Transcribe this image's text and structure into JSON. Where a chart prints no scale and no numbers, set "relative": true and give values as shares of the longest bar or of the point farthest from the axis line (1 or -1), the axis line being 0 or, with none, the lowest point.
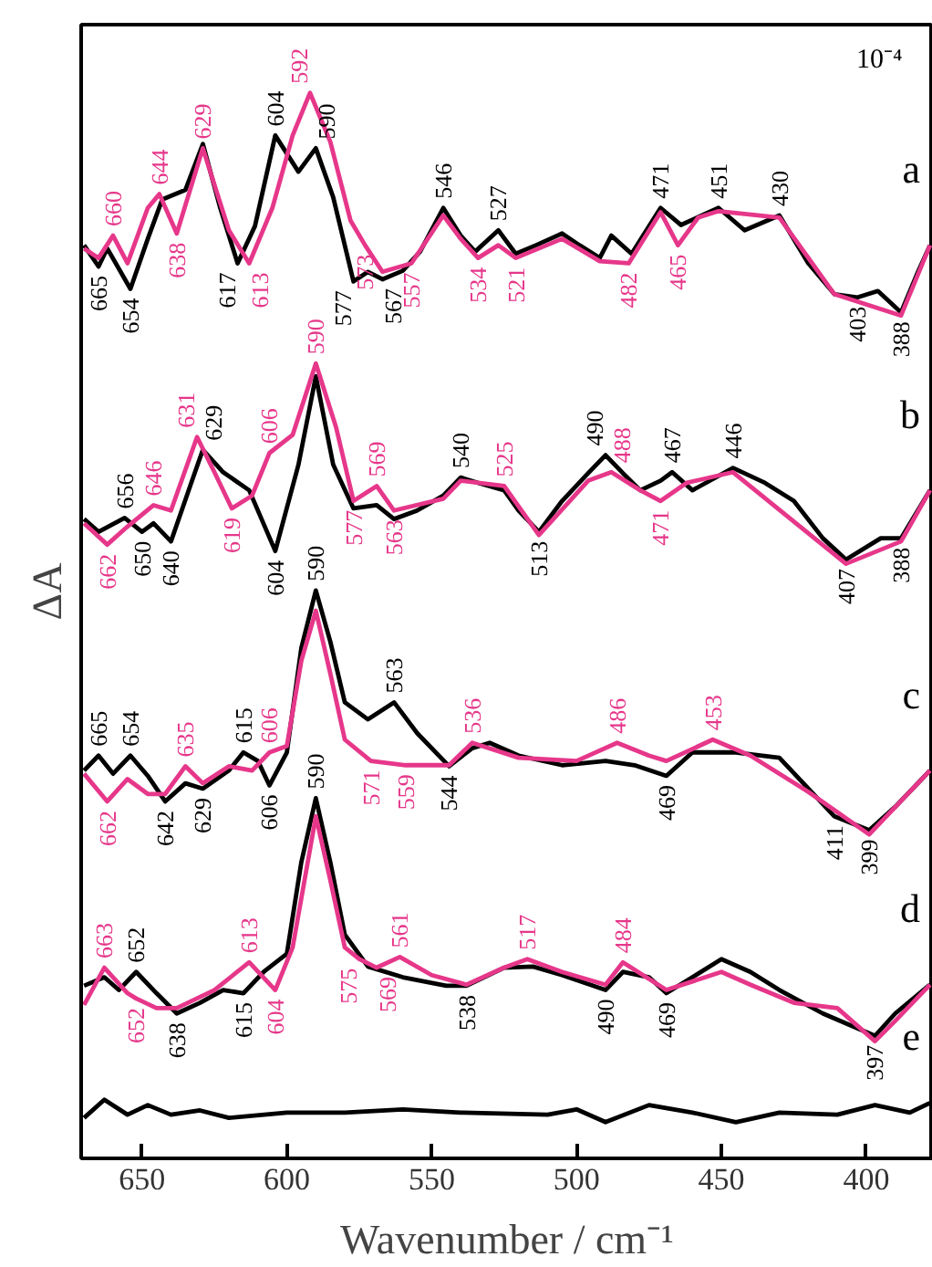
{
  "chart_data": {
    "type": "line",
    "relative": true,
    "xlabel": "Wavenumber / cm⁻¹",
    "ylabel": "ΔA",
    "xlim": [
      671,
      377
    ],
    "xticks": [
      650,
      600,
      550,
      500,
      450,
      400
    ],
    "tick_labels": "x",
    "grid": false,
    "marker": "none",
    "line_style": "solid",
    "series": [
      {
        "name": "a",
        "color": "#000000",
        "x": [
          670,
          667,
          665,
          662,
          654,
          648,
          643,
          635,
          629,
          623,
          617,
          611,
          604,
          596,
          590,
          584,
          577,
          572,
          567,
          560,
          554,
          546,
          540,
          535,
          527,
          521,
          514,
          505,
          499,
          492,
          488,
          481,
          471,
          464,
          451,
          442,
          430,
          420,
          411,
          403,
          396,
          388,
          382,
          378
        ],
        "values": [
          0.857,
          0.845,
          0.837,
          0.854,
          0.816,
          0.863,
          0.9,
          0.909,
          0.952,
          0.892,
          0.84,
          0.875,
          0.96,
          0.926,
          0.948,
          0.902,
          0.823,
          0.832,
          0.825,
          0.833,
          0.851,
          0.892,
          0.866,
          0.851,
          0.871,
          0.849,
          0.857,
          0.868,
          0.857,
          0.845,
          0.866,
          0.849,
          0.892,
          0.876,
          0.892,
          0.871,
          0.885,
          0.84,
          0.811,
          0.808,
          0.814,
          0.794,
          0.833,
          0.857
        ]
      },
      {
        "color": "#e6378a",
        "x": [
          670,
          665,
          660,
          655,
          648,
          644,
          638,
          629,
          620,
          613,
          605,
          598,
          592,
          585,
          578,
          573,
          567,
          557,
          546,
          540,
          534,
          527,
          521,
          505,
          492,
          482,
          471,
          465,
          458,
          451,
          430,
          411,
          388,
          378
        ],
        "values": [
          0.854,
          0.845,
          0.866,
          0.84,
          0.892,
          0.905,
          0.868,
          0.948,
          0.871,
          0.84,
          0.892,
          0.96,
          1.0,
          0.954,
          0.88,
          0.857,
          0.832,
          0.84,
          0.885,
          0.863,
          0.845,
          0.857,
          0.845,
          0.863,
          0.842,
          0.84,
          0.888,
          0.857,
          0.883,
          0.889,
          0.883,
          0.811,
          0.791,
          0.857
        ]
      },
      {
        "name": "b",
        "color": "#000000",
        "x": [
          670,
          665,
          656,
          650,
          646,
          640,
          633,
          629,
          622,
          613,
          604,
          596,
          590,
          584,
          577,
          569,
          563,
          555,
          546,
          540,
          534,
          525,
          520,
          513,
          505,
          496,
          490,
          484,
          478,
          471,
          467,
          460,
          446,
          435,
          425,
          415,
          407,
          395,
          388,
          378
        ],
        "values": [
          0.6,
          0.588,
          0.601,
          0.588,
          0.596,
          0.579,
          0.634,
          0.665,
          0.644,
          0.627,
          0.57,
          0.651,
          0.734,
          0.651,
          0.61,
          0.613,
          0.6,
          0.608,
          0.622,
          0.639,
          0.634,
          0.627,
          0.608,
          0.588,
          0.617,
          0.643,
          0.66,
          0.643,
          0.627,
          0.636,
          0.644,
          0.627,
          0.648,
          0.634,
          0.617,
          0.582,
          0.562,
          0.582,
          0.582,
          0.627
        ]
      },
      {
        "color": "#e6378a",
        "x": [
          670,
          662,
          655,
          646,
          640,
          631,
          625,
          619,
          612,
          606,
          598,
          590,
          583,
          577,
          569,
          563,
          546,
          540,
          525,
          513,
          496,
          488,
          478,
          471,
          462,
          446,
          407,
          388,
          378
        ],
        "values": [
          0.596,
          0.576,
          0.593,
          0.613,
          0.608,
          0.677,
          0.644,
          0.61,
          0.622,
          0.662,
          0.679,
          0.746,
          0.686,
          0.617,
          0.631,
          0.608,
          0.619,
          0.636,
          0.631,
          0.585,
          0.636,
          0.644,
          0.627,
          0.617,
          0.634,
          0.644,
          0.558,
          0.579,
          0.627
        ]
      },
      {
        "name": "c",
        "color": "#000000",
        "x": [
          670,
          665,
          660,
          654,
          648,
          642,
          635,
          629,
          620,
          615,
          610,
          606,
          600,
          595,
          590,
          585,
          580,
          572,
          563,
          555,
          544,
          536,
          530,
          520,
          505,
          490,
          480,
          469,
          460,
          445,
          430,
          420,
          411,
          399,
          390,
          378
        ],
        "values": [
          0.364,
          0.378,
          0.361,
          0.378,
          0.359,
          0.335,
          0.352,
          0.347,
          0.364,
          0.381,
          0.373,
          0.35,
          0.381,
          0.479,
          0.533,
          0.485,
          0.428,
          0.412,
          0.428,
          0.399,
          0.368,
          0.385,
          0.39,
          0.378,
          0.369,
          0.373,
          0.369,
          0.359,
          0.381,
          0.381,
          0.376,
          0.347,
          0.321,
          0.308,
          0.33,
          0.364
        ]
      },
      {
        "color": "#e6378a",
        "x": [
          670,
          662,
          655,
          648,
          642,
          635,
          629,
          620,
          612,
          606,
          600,
          595,
          590,
          585,
          580,
          571,
          559,
          544,
          536,
          520,
          500,
          486,
          475,
          469,
          453,
          440,
          420,
          399,
          378
        ],
        "values": [
          0.361,
          0.335,
          0.356,
          0.342,
          0.342,
          0.368,
          0.352,
          0.368,
          0.364,
          0.381,
          0.387,
          0.467,
          0.514,
          0.455,
          0.393,
          0.373,
          0.369,
          0.369,
          0.39,
          0.376,
          0.373,
          0.39,
          0.378,
          0.373,
          0.393,
          0.378,
          0.344,
          0.304,
          0.364
        ]
      },
      {
        "name": "d",
        "color": "#000000",
        "x": [
          670,
          663,
          658,
          652,
          645,
          638,
          630,
          622,
          615,
          608,
          600,
          595,
          590,
          585,
          580,
          572,
          560,
          545,
          538,
          525,
          515,
          505,
          490,
          484,
          475,
          469,
          460,
          450,
          440,
          430,
          415,
          397,
          390,
          378
        ],
        "values": [
          0.162,
          0.17,
          0.158,
          0.175,
          0.155,
          0.136,
          0.146,
          0.158,
          0.155,
          0.175,
          0.192,
          0.278,
          0.338,
          0.278,
          0.21,
          0.18,
          0.17,
          0.162,
          0.162,
          0.179,
          0.18,
          0.172,
          0.158,
          0.175,
          0.17,
          0.155,
          0.17,
          0.187,
          0.175,
          0.158,
          0.136,
          0.115,
          0.136,
          0.163
        ]
      },
      {
        "color": "#e6378a",
        "x": [
          670,
          663,
          655,
          652,
          645,
          638,
          625,
          613,
          604,
          598,
          590,
          585,
          580,
          575,
          569,
          561,
          550,
          538,
          525,
          517,
          505,
          490,
          484,
          469,
          450,
          440,
          425,
          410,
          397,
          390,
          378
        ],
        "values": [
          0.144,
          0.179,
          0.155,
          0.15,
          0.141,
          0.141,
          0.158,
          0.184,
          0.158,
          0.198,
          0.321,
          0.261,
          0.198,
          0.187,
          0.179,
          0.189,
          0.172,
          0.163,
          0.179,
          0.187,
          0.175,
          0.163,
          0.184,
          0.158,
          0.175,
          0.163,
          0.146,
          0.141,
          0.11,
          0.129,
          0.163
        ]
      },
      {
        "name": "e",
        "color": "#000000",
        "x": [
          670,
          663,
          655,
          648,
          640,
          630,
          620,
          600,
          580,
          560,
          540,
          510,
          500,
          490,
          475,
          460,
          445,
          430,
          410,
          397,
          385,
          378
        ],
        "values": [
          0.038,
          0.055,
          0.041,
          0.05,
          0.041,
          0.045,
          0.038,
          0.043,
          0.043,
          0.046,
          0.043,
          0.041,
          0.046,
          0.034,
          0.05,
          0.043,
          0.034,
          0.043,
          0.041,
          0.05,
          0.043,
          0.052
        ]
      }
    ],
    "annotations": [
      "10⁻⁴",
      {
        "text": "665",
        "x": 665,
        "y": 0.837
      },
      {
        "text": "654",
        "x": 654,
        "y": 0.816
      },
      {
        "text": "617",
        "x": 617,
        "y": 0.84
      },
      {
        "text": "604",
        "x": 604,
        "y": 0.96
      },
      {
        "text": "590",
        "x": 590,
        "y": 0.948
      },
      {
        "text": "577",
        "x": 577,
        "y": 0.823
      },
      {
        "text": "567",
        "x": 567,
        "y": 0.825
      },
      {
        "text": "546",
        "x": 546,
        "y": 0.892
      },
      {
        "text": "527",
        "x": 527,
        "y": 0.871
      },
      {
        "text": "471",
        "x": 471,
        "y": 0.892
      },
      {
        "text": "451",
        "x": 451,
        "y": 0.892
      },
      {
        "text": "430",
        "x": 430,
        "y": 0.885
      },
      {
        "text": "403",
        "x": 403,
        "y": 0.808
      },
      {
        "text": "388",
        "x": 388,
        "y": 0.794
      },
      {
        "text": "660",
        "x": 660,
        "y": 0.866
      },
      {
        "text": "644",
        "x": 644,
        "y": 0.905
      },
      {
        "text": "638",
        "x": 638,
        "y": 0.868
      },
      {
        "text": "629",
        "x": 629,
        "y": 0.948
      },
      {
        "text": "613",
        "x": 613,
        "y": 0.84
      },
      {
        "text": "592",
        "x": 592,
        "y": 1.0
      },
      {
        "text": "573",
        "x": 573,
        "y": 0.857
      },
      {
        "text": "557",
        "x": 557,
        "y": 0.84
      },
      {
        "text": "534",
        "x": 534,
        "y": 0.845
      },
      {
        "text": "521",
        "x": 521,
        "y": 0.845
      },
      {
        "text": "482",
        "x": 482,
        "y": 0.84
      },
      {
        "text": "465",
        "x": 465,
        "y": 0.857
      },
      {
        "text": "656",
        "x": 656,
        "y": 0.601
      },
      {
        "text": "650",
        "x": 650,
        "y": 0.588
      },
      {
        "text": "640",
        "x": 640,
        "y": 0.579
      },
      {
        "text": "629",
        "x": 629,
        "y": 0.665
      },
      {
        "text": "604",
        "x": 604,
        "y": 0.57
      },
      {
        "text": "540",
        "x": 540,
        "y": 0.639
      },
      {
        "text": "513",
        "x": 513,
        "y": 0.588
      },
      {
        "text": "490",
        "x": 490,
        "y": 0.66
      },
      {
        "text": "467",
        "x": 467,
        "y": 0.644
      },
      {
        "text": "446",
        "x": 446,
        "y": 0.648
      },
      {
        "text": "407",
        "x": 407,
        "y": 0.562
      },
      {
        "text": "388",
        "x": 388,
        "y": 0.582
      },
      {
        "text": "662",
        "x": 662,
        "y": 0.576
      },
      {
        "text": "646",
        "x": 646,
        "y": 0.613
      },
      {
        "text": "631",
        "x": 631,
        "y": 0.677
      },
      {
        "text": "619",
        "x": 619,
        "y": 0.61
      },
      {
        "text": "606",
        "x": 606,
        "y": 0.662
      },
      {
        "text": "590",
        "x": 590,
        "y": 0.746
      },
      {
        "text": "577",
        "x": 577,
        "y": 0.617
      },
      {
        "text": "569",
        "x": 569,
        "y": 0.631
      },
      {
        "text": "563",
        "x": 563,
        "y": 0.608
      },
      {
        "text": "525",
        "x": 525,
        "y": 0.631
      },
      {
        "text": "488",
        "x": 488,
        "y": 0.644
      },
      {
        "text": "471",
        "x": 471,
        "y": 0.617
      },
      {
        "text": "665",
        "x": 665,
        "y": 0.378
      },
      {
        "text": "654",
        "x": 654,
        "y": 0.378
      },
      {
        "text": "642",
        "x": 642,
        "y": 0.335
      },
      {
        "text": "629",
        "x": 629,
        "y": 0.347
      },
      {
        "text": "615",
        "x": 615,
        "y": 0.381
      },
      {
        "text": "606",
        "x": 606,
        "y": 0.35
      },
      {
        "text": "590",
        "x": 590,
        "y": 0.533
      },
      {
        "text": "563",
        "x": 563,
        "y": 0.428
      },
      {
        "text": "544",
        "x": 544,
        "y": 0.368
      },
      {
        "text": "469",
        "x": 469,
        "y": 0.359
      },
      {
        "text": "411",
        "x": 411,
        "y": 0.321
      },
      {
        "text": "399",
        "x": 399,
        "y": 0.308
      },
      {
        "text": "662",
        "x": 662,
        "y": 0.335
      },
      {
        "text": "635",
        "x": 635,
        "y": 0.368
      },
      {
        "text": "606",
        "x": 606,
        "y": 0.381
      },
      {
        "text": "571",
        "x": 571,
        "y": 0.373
      },
      {
        "text": "559",
        "x": 559,
        "y": 0.369
      },
      {
        "text": "536",
        "x": 536,
        "y": 0.39
      },
      {
        "text": "486",
        "x": 486,
        "y": 0.39
      },
      {
        "text": "453",
        "x": 453,
        "y": 0.393
      },
      {
        "text": "652",
        "x": 652,
        "y": 0.175
      },
      {
        "text": "638",
        "x": 638,
        "y": 0.136
      },
      {
        "text": "615",
        "x": 615,
        "y": 0.155
      },
      {
        "text": "590",
        "x": 590,
        "y": 0.338
      },
      {
        "text": "538",
        "x": 538,
        "y": 0.162
      },
      {
        "text": "490",
        "x": 490,
        "y": 0.158
      },
      {
        "text": "469",
        "x": 469,
        "y": 0.155
      },
      {
        "text": "397",
        "x": 397,
        "y": 0.115
      },
      {
        "text": "663",
        "x": 663,
        "y": 0.179
      },
      {
        "text": "652",
        "x": 652,
        "y": 0.15
      },
      {
        "text": "613",
        "x": 613,
        "y": 0.184
      },
      {
        "text": "604",
        "x": 604,
        "y": 0.158
      },
      {
        "text": "575",
        "x": 575,
        "y": 0.187
      },
      {
        "text": "569",
        "x": 569,
        "y": 0.179
      },
      {
        "text": "561",
        "x": 561,
        "y": 0.189
      },
      {
        "text": "517",
        "x": 517,
        "y": 0.187
      },
      {
        "text": "484",
        "x": 484,
        "y": 0.184
      }
    ]
  }
}
